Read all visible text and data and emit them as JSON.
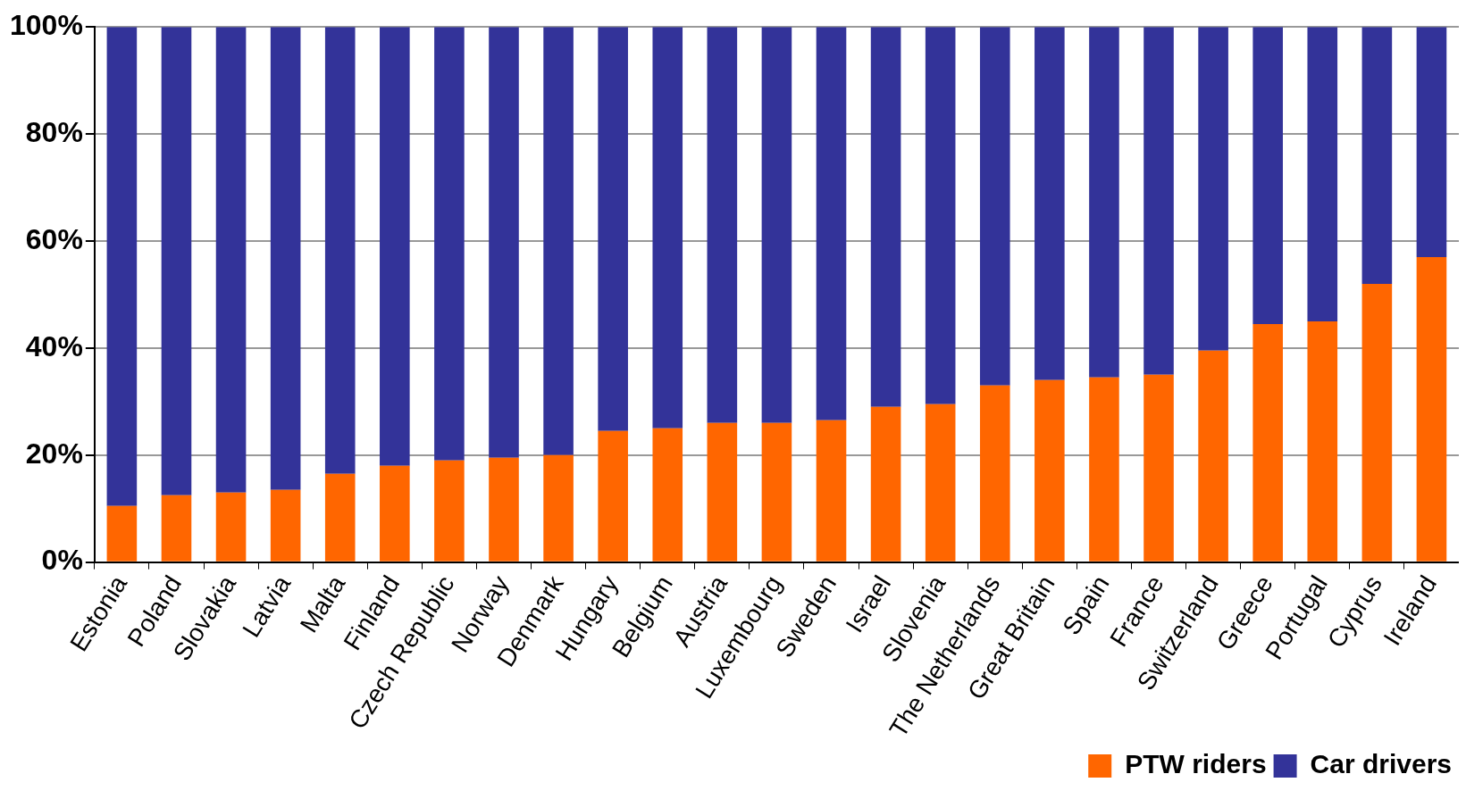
{
  "chart_data": {
    "type": "bar",
    "stacked": true,
    "categories": [
      "Estonia",
      "Poland",
      "Slovakia",
      "Latvia",
      "Malta",
      "Finland",
      "Czech Republic",
      "Norway",
      "Denmark",
      "Hungary",
      "Belgium",
      "Austria",
      "Luxembourg",
      "Sweden",
      "Israel",
      "Slovenia",
      "The Netherlands",
      "Great Britain",
      "Spain",
      "France",
      "Switzerland",
      "Greece",
      "Portugal",
      "Cyprus",
      "Ireland"
    ],
    "series": [
      {
        "name": "PTW riders",
        "color": "#ff6600",
        "values": [
          10.5,
          12.5,
          13,
          13.5,
          16.5,
          18,
          19,
          19.5,
          20,
          24.5,
          25,
          26,
          26,
          26.5,
          29,
          29.5,
          33,
          34,
          34.5,
          35,
          39.5,
          44.5,
          45,
          52,
          57
        ]
      },
      {
        "name": "Car drivers",
        "color": "#333399",
        "values": [
          89.5,
          87.5,
          87,
          86.5,
          83.5,
          82,
          81,
          80.5,
          80,
          75.5,
          75,
          74,
          74,
          73.5,
          71,
          70.5,
          67,
          66,
          65.5,
          65,
          60.5,
          55.5,
          55,
          48,
          43
        ]
      }
    ],
    "ylim": [
      0,
      100
    ],
    "yticks": [
      {
        "value": 0,
        "label": "0%"
      },
      {
        "value": 20,
        "label": "20%"
      },
      {
        "value": 40,
        "label": "40%"
      },
      {
        "value": 60,
        "label": "60%"
      },
      {
        "value": 80,
        "label": "80%"
      },
      {
        "value": 100,
        "label": "100%"
      }
    ],
    "grid": "y",
    "legend": "bottom right"
  }
}
